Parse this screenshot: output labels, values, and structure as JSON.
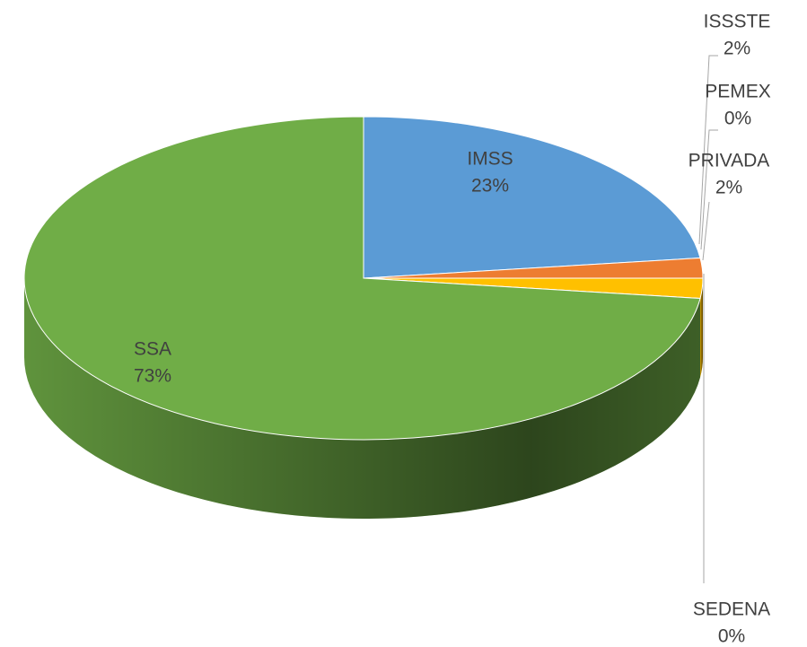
{
  "chart_data": {
    "type": "pie",
    "categories": [
      "IMSS",
      "ISSSTE",
      "PEMEX",
      "PRIVADA",
      "SEDENA",
      "SSA"
    ],
    "values": [
      23,
      2,
      0,
      2,
      0,
      73
    ],
    "value_labels": [
      "23%",
      "2%",
      "0%",
      "2%",
      "0%",
      "73%"
    ],
    "colors": [
      "#5b9bd5",
      "#ed7d31",
      "#a5a5a5",
      "#ffc000",
      "#4472c4",
      "#70ad47"
    ]
  }
}
